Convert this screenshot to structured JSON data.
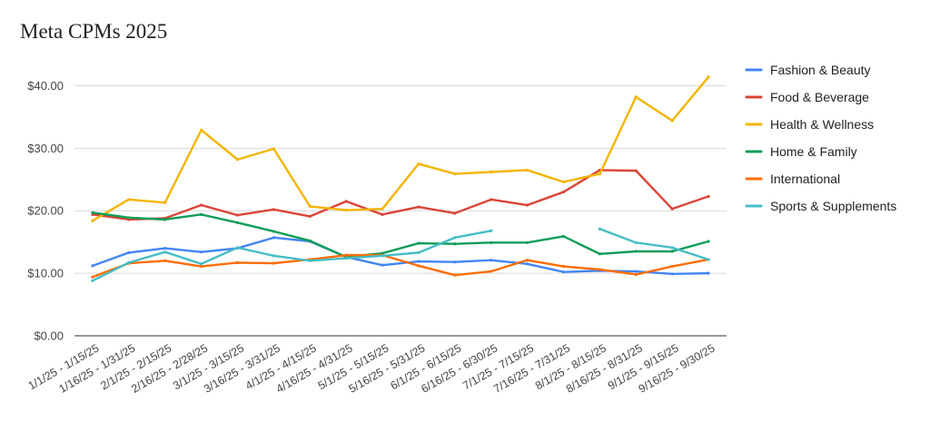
{
  "chart_data": {
    "type": "line",
    "title": "Meta CPMs 2025",
    "xlabel": "",
    "ylabel": "",
    "ylim": [
      0,
      45
    ],
    "y_ticks": [
      "$0.00",
      "$10.00",
      "$20.00",
      "$30.00",
      "$40.00"
    ],
    "y_tick_values": [
      0,
      10,
      20,
      30,
      40
    ],
    "grid": true,
    "legend_position": "right",
    "categories": [
      "1/1/25 - 1/15/25",
      "1/16/25 - 1/31/25",
      "2/1/25 - 2/15/25",
      "2/16/25 - 2/28/25",
      "3/1/25 - 3/15/25",
      "3/16/25 - 3/31/25",
      "4/1/25 - 4/15/25",
      "4/16/25 - 4/31/25",
      "5/1/25 - 5/15/25",
      "5/16/25 - 5/31/25",
      "6/1/25 - 6/15/25",
      "6/16/25 - 6/30/25",
      "7/1/25 - 7/15/25",
      "7/16/25 - 7/31/25",
      "8/1/25 - 8/15/25",
      "8/16/25 - 8/31/25",
      "9/1/25 - 9/15/25",
      "9/16/25 - 9/30/25"
    ],
    "series": [
      {
        "name": "Fashion & Beauty",
        "color": "#4285f4",
        "values": [
          11.2,
          13.3,
          14.0,
          13.4,
          14.0,
          15.7,
          15.1,
          12.6,
          11.3,
          11.9,
          11.8,
          12.1,
          11.5,
          10.2,
          10.4,
          10.3,
          9.9,
          10.0
        ]
      },
      {
        "name": "Food & Beverage",
        "color": "#db4437",
        "values": [
          19.4,
          18.6,
          18.8,
          20.9,
          19.3,
          20.2,
          19.1,
          21.5,
          19.4,
          20.6,
          19.6,
          21.8,
          20.9,
          23.0,
          26.5,
          26.4,
          20.3,
          22.3
        ]
      },
      {
        "name": "Health & Wellness",
        "color": "#f4b400",
        "values": [
          18.4,
          21.8,
          21.3,
          32.9,
          28.2,
          29.9,
          20.7,
          20.1,
          20.3,
          27.5,
          25.9,
          26.2,
          26.5,
          24.6,
          25.9,
          38.2,
          34.4,
          41.4
        ]
      },
      {
        "name": "Home & Family",
        "color": "#0f9d58",
        "values": [
          19.7,
          18.9,
          18.6,
          19.4,
          18.1,
          16.7,
          15.2,
          12.6,
          13.2,
          14.8,
          14.7,
          14.9,
          14.9,
          15.9,
          13.1,
          13.5,
          13.5,
          15.1
        ]
      },
      {
        "name": "International",
        "color": "#ff6d01",
        "values": [
          9.4,
          11.6,
          12.0,
          11.1,
          11.7,
          11.6,
          12.2,
          12.9,
          12.9,
          11.2,
          9.7,
          10.3,
          12.1,
          11.1,
          10.6,
          9.8,
          11.1,
          12.2
        ]
      },
      {
        "name": "Sports & Supplements",
        "color": "#46bdc6",
        "values": [
          8.8,
          11.7,
          13.4,
          11.5,
          14.1,
          12.8,
          12.0,
          12.4,
          12.8,
          13.3,
          15.7,
          16.8,
          null,
          null,
          17.1,
          14.9,
          14.1,
          12.2
        ]
      }
    ]
  }
}
